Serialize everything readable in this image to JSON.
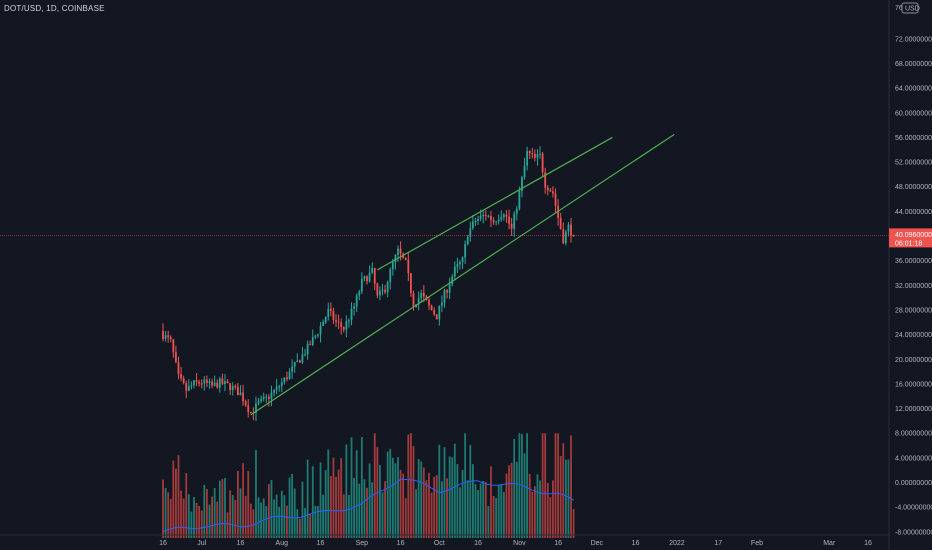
{
  "header": {
    "symbol_title": "DOT/USD, 1D, COINBASE"
  },
  "currency_badge": "USD",
  "colors": {
    "background": "#131722",
    "up": "#26a69a",
    "down": "#ef5350",
    "up_volume": "#1e7b72",
    "down_volume": "#a33a3b",
    "channel_line": "#4caf50",
    "volume_ma": "#2962ff",
    "price_line": "#ef5350",
    "axis_text": "#b2b5be"
  },
  "price_tag": {
    "price": "40.09600000",
    "countdown": "06:01:18"
  },
  "top_tick_partial": "76.0",
  "chart_data": {
    "type": "candlestick",
    "title": "DOT/USD, 1D, COINBASE",
    "y_axis_side": "right",
    "ylim": [
      -9,
      77
    ],
    "yticks": [
      {
        "value": 72,
        "label": "72.00000000"
      },
      {
        "value": 68,
        "label": "68.00000000"
      },
      {
        "value": 64,
        "label": "64.00000000"
      },
      {
        "value": 60,
        "label": "60.00000000"
      },
      {
        "value": 56,
        "label": "56.00000000"
      },
      {
        "value": 52,
        "label": "52.00000000"
      },
      {
        "value": 48,
        "label": "48.00000000"
      },
      {
        "value": 44,
        "label": "44.00000000"
      },
      {
        "value": 36,
        "label": "36.00000000"
      },
      {
        "value": 32,
        "label": "32.00000000"
      },
      {
        "value": 28,
        "label": "28.00000000"
      },
      {
        "value": 24,
        "label": "24.00000000"
      },
      {
        "value": 20,
        "label": "20.00000000"
      },
      {
        "value": 16,
        "label": "16.00000000"
      },
      {
        "value": 12,
        "label": "12.00000000"
      },
      {
        "value": 8,
        "label": "8.00000000"
      },
      {
        "value": 4,
        "label": "4.00000000"
      },
      {
        "value": 0,
        "label": "0.00000000"
      },
      {
        "value": -4,
        "label": "-4.00000000"
      },
      {
        "value": -8,
        "label": "-8.00000000"
      }
    ],
    "xticks": [
      {
        "date": "2021-06-16",
        "label": "16"
      },
      {
        "date": "2021-07-01",
        "label": "Jul"
      },
      {
        "date": "2021-07-16",
        "label": "16"
      },
      {
        "date": "2021-08-01",
        "label": "Aug"
      },
      {
        "date": "2021-08-16",
        "label": "16"
      },
      {
        "date": "2021-09-01",
        "label": "Sep"
      },
      {
        "date": "2021-09-16",
        "label": "16"
      },
      {
        "date": "2021-10-01",
        "label": "Oct"
      },
      {
        "date": "2021-10-16",
        "label": "16"
      },
      {
        "date": "2021-11-01",
        "label": "Nov"
      },
      {
        "date": "2021-11-16",
        "label": "16"
      },
      {
        "date": "2021-12-01",
        "label": "Dec"
      },
      {
        "date": "2021-12-16",
        "label": "16"
      },
      {
        "date": "2022-01-01",
        "label": "2022"
      },
      {
        "date": "2022-01-17",
        "label": "17"
      },
      {
        "date": "2022-02-01",
        "label": "Feb"
      },
      {
        "date": "2022-03-01",
        "label": "Mar"
      },
      {
        "date": "2022-03-16",
        "label": "16"
      }
    ],
    "x_range": [
      "2021-06-16",
      "2022-03-16"
    ],
    "price_path": [
      {
        "date": "2021-06-16",
        "close": 24
      },
      {
        "date": "2021-06-19",
        "close": 22.8
      },
      {
        "date": "2021-06-22",
        "close": 17
      },
      {
        "date": "2021-06-25",
        "close": 15
      },
      {
        "date": "2021-06-28",
        "close": 16
      },
      {
        "date": "2021-07-01",
        "close": 16.3
      },
      {
        "date": "2021-07-05",
        "close": 15.6
      },
      {
        "date": "2021-07-08",
        "close": 16.2
      },
      {
        "date": "2021-07-12",
        "close": 15.6
      },
      {
        "date": "2021-07-16",
        "close": 14.4
      },
      {
        "date": "2021-07-20",
        "close": 11.3
      },
      {
        "date": "2021-07-23",
        "close": 12.8
      },
      {
        "date": "2021-07-26",
        "close": 13.6
      },
      {
        "date": "2021-07-30",
        "close": 15.2
      },
      {
        "date": "2021-08-03",
        "close": 17.2
      },
      {
        "date": "2021-08-07",
        "close": 19.5
      },
      {
        "date": "2021-08-11",
        "close": 21.8
      },
      {
        "date": "2021-08-15",
        "close": 24.5
      },
      {
        "date": "2021-08-19",
        "close": 27.8
      },
      {
        "date": "2021-08-22",
        "close": 26
      },
      {
        "date": "2021-08-25",
        "close": 25
      },
      {
        "date": "2021-08-29",
        "close": 28.5
      },
      {
        "date": "2021-09-01",
        "close": 32.5
      },
      {
        "date": "2021-09-05",
        "close": 34.2
      },
      {
        "date": "2021-09-07",
        "close": 30
      },
      {
        "date": "2021-09-10",
        "close": 31.5
      },
      {
        "date": "2021-09-13",
        "close": 35.5
      },
      {
        "date": "2021-09-15",
        "close": 37.5
      },
      {
        "date": "2021-09-18",
        "close": 35.5
      },
      {
        "date": "2021-09-21",
        "close": 29
      },
      {
        "date": "2021-09-24",
        "close": 30.5
      },
      {
        "date": "2021-09-27",
        "close": 28.5
      },
      {
        "date": "2021-09-30",
        "close": 27
      },
      {
        "date": "2021-10-03",
        "close": 30.5
      },
      {
        "date": "2021-10-07",
        "close": 34.5
      },
      {
        "date": "2021-10-10",
        "close": 36
      },
      {
        "date": "2021-10-12",
        "close": 40.5
      },
      {
        "date": "2021-10-15",
        "close": 42.5
      },
      {
        "date": "2021-10-19",
        "close": 43.5
      },
      {
        "date": "2021-10-22",
        "close": 42.5
      },
      {
        "date": "2021-10-26",
        "close": 44
      },
      {
        "date": "2021-10-29",
        "close": 41
      },
      {
        "date": "2021-11-01",
        "close": 47
      },
      {
        "date": "2021-11-04",
        "close": 53.5
      },
      {
        "date": "2021-11-07",
        "close": 52.5
      },
      {
        "date": "2021-11-09",
        "close": 53
      },
      {
        "date": "2021-11-11",
        "close": 48.5
      },
      {
        "date": "2021-11-14",
        "close": 47
      },
      {
        "date": "2021-11-16",
        "close": 43
      },
      {
        "date": "2021-11-18",
        "close": 39.5
      },
      {
        "date": "2021-11-20",
        "close": 41.5
      },
      {
        "date": "2021-11-22",
        "close": 40.1
      }
    ],
    "trend_lines": [
      {
        "name": "channel-lower",
        "start": {
          "date": "2021-07-20",
          "value": 11
        },
        "end": {
          "date": "2021-12-31",
          "value": 56.5
        }
      },
      {
        "name": "channel-upper",
        "start": {
          "date": "2021-09-07",
          "value": 34.5
        },
        "end": {
          "date": "2021-12-07",
          "value": 56
        }
      }
    ],
    "volume": {
      "baseline": -9,
      "max_value": 8,
      "colored_by_candle": true
    },
    "volume_ma": [
      {
        "date": "2021-06-16",
        "value": -8
      },
      {
        "date": "2021-07-01",
        "value": -7
      },
      {
        "date": "2021-07-16",
        "value": -7
      },
      {
        "date": "2021-08-01",
        "value": -5.6
      },
      {
        "date": "2021-08-16",
        "value": -5
      },
      {
        "date": "2021-09-01",
        "value": -3.6
      },
      {
        "date": "2021-09-16",
        "value": 0.8
      },
      {
        "date": "2021-10-01",
        "value": -1.3
      },
      {
        "date": "2021-10-16",
        "value": 0.2
      },
      {
        "date": "2021-11-01",
        "value": -0.6
      },
      {
        "date": "2021-11-16",
        "value": -2
      },
      {
        "date": "2021-11-22",
        "value": -3
      }
    ]
  }
}
